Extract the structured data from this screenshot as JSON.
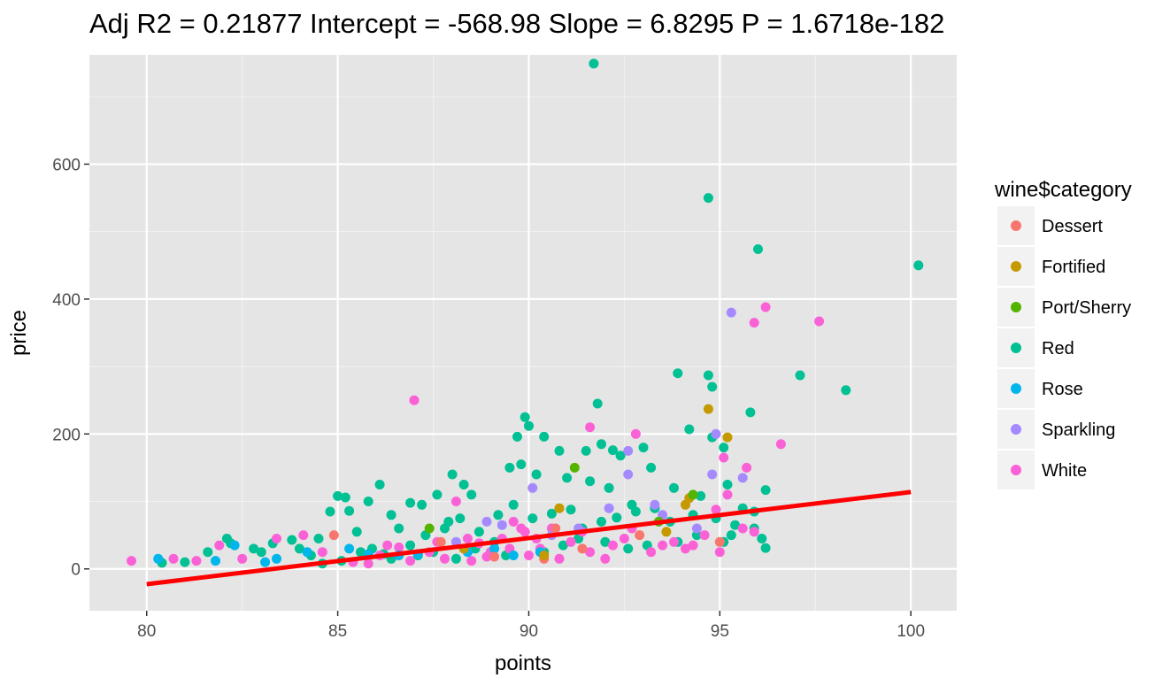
{
  "chart_data": {
    "type": "scatter",
    "title": "Adj R2 =  0.21877 Intercept = -568.98  Slope = 6.8295  P = 1.6718e-182",
    "xlabel": "points",
    "ylabel": "price",
    "xlim": [
      78.5,
      101.2
    ],
    "ylim": [
      -62,
      762
    ],
    "x_ticks": [
      80,
      85,
      90,
      95,
      100
    ],
    "x_tick_labels": [
      "80",
      "85",
      "90",
      "95",
      "100"
    ],
    "y_ticks": [
      0,
      200,
      400,
      600
    ],
    "y_tick_labels": [
      "0",
      "200",
      "400",
      "600"
    ],
    "grid": true,
    "panel_background": "#e5e5e5",
    "legend": {
      "title": "wine$category",
      "placement": "right",
      "entries": [
        {
          "name": "Dessert",
          "color": "#f8766d"
        },
        {
          "name": "Fortified",
          "color": "#c49a00"
        },
        {
          "name": "Port/Sherry",
          "color": "#53b400"
        },
        {
          "name": "Red",
          "color": "#00c094"
        },
        {
          "name": "Rose",
          "color": "#00b6eb"
        },
        {
          "name": "Sparkling",
          "color": "#a58aff"
        },
        {
          "name": "White",
          "color": "#fb61d7"
        }
      ]
    },
    "regression_line": {
      "color": "#ff0000",
      "intercept": -568.98,
      "slope": 6.8295,
      "x_range": [
        80,
        100
      ]
    },
    "series": [
      {
        "name": "Red",
        "color": "#00c094",
        "points": [
          [
            91.7,
            749
          ],
          [
            94.7,
            550
          ],
          [
            96,
            474
          ],
          [
            100.2,
            450
          ],
          [
            97.1,
            287
          ],
          [
            98.3,
            265
          ],
          [
            93.9,
            290
          ],
          [
            94.7,
            287
          ],
          [
            94.8,
            270
          ],
          [
            95.8,
            232
          ],
          [
            91.8,
            245
          ],
          [
            89.9,
            225
          ],
          [
            90,
            212
          ],
          [
            89.7,
            196
          ],
          [
            90.4,
            196
          ],
          [
            94.2,
            207
          ],
          [
            94.8,
            195
          ],
          [
            96.2,
            117
          ],
          [
            95.9,
            60
          ],
          [
            96.2,
            31
          ],
          [
            95.1,
            180
          ],
          [
            95.2,
            125
          ],
          [
            95.6,
            90
          ],
          [
            95.3,
            50
          ],
          [
            91.9,
            185
          ],
          [
            92.2,
            176
          ],
          [
            93,
            180
          ],
          [
            92.4,
            168
          ],
          [
            91.5,
            175
          ],
          [
            90.8,
            175
          ],
          [
            89.8,
            155
          ],
          [
            89.5,
            150
          ],
          [
            90.2,
            140
          ],
          [
            91,
            135
          ],
          [
            91.6,
            130
          ],
          [
            92.1,
            120
          ],
          [
            93.2,
            150
          ],
          [
            93.8,
            120
          ],
          [
            94.5,
            108
          ],
          [
            92.7,
            95
          ],
          [
            85,
            108
          ],
          [
            85.2,
            106
          ],
          [
            84.8,
            85
          ],
          [
            85.3,
            86
          ],
          [
            86.1,
            125
          ],
          [
            85.8,
            100
          ],
          [
            86.4,
            80
          ],
          [
            86.9,
            98
          ],
          [
            87.2,
            95
          ],
          [
            87.6,
            110
          ],
          [
            88,
            140
          ],
          [
            88.3,
            125
          ],
          [
            88.5,
            110
          ],
          [
            87.9,
            70
          ],
          [
            86.6,
            60
          ],
          [
            85.5,
            55
          ],
          [
            84.5,
            45
          ],
          [
            83.8,
            43
          ],
          [
            83.3,
            38
          ],
          [
            82.8,
            30
          ],
          [
            82.2,
            38
          ],
          [
            82.1,
            45
          ],
          [
            81.6,
            25
          ],
          [
            81,
            10
          ],
          [
            80.4,
            9
          ],
          [
            83,
            25
          ],
          [
            84,
            30
          ],
          [
            84.3,
            20
          ],
          [
            85.6,
            25
          ],
          [
            86.2,
            22
          ],
          [
            86.9,
            35
          ],
          [
            87.3,
            50
          ],
          [
            87.8,
            60
          ],
          [
            88.2,
            75
          ],
          [
            88.7,
            55
          ],
          [
            89.2,
            80
          ],
          [
            89.6,
            95
          ],
          [
            90.1,
            75
          ],
          [
            90.6,
            82
          ],
          [
            91.1,
            88
          ],
          [
            91.4,
            60
          ],
          [
            91.9,
            70
          ],
          [
            92.3,
            76
          ],
          [
            92.8,
            85
          ],
          [
            93.3,
            90
          ],
          [
            93.7,
            70
          ],
          [
            94.3,
            80
          ],
          [
            94.9,
            75
          ],
          [
            95.4,
            65
          ],
          [
            95.9,
            85
          ],
          [
            89.1,
            40
          ],
          [
            88.6,
            30
          ],
          [
            89.4,
            20
          ],
          [
            90.4,
            25
          ],
          [
            90.9,
            35
          ],
          [
            91.3,
            45
          ],
          [
            92,
            40
          ],
          [
            92.6,
            30
          ],
          [
            93.1,
            35
          ],
          [
            93.9,
            40
          ],
          [
            94.4,
            50
          ],
          [
            95.1,
            40
          ],
          [
            96.1,
            45
          ],
          [
            87.1,
            20
          ],
          [
            86.4,
            15
          ],
          [
            85.9,
            30
          ],
          [
            85.1,
            12
          ],
          [
            84.6,
            8
          ],
          [
            88.1,
            15
          ],
          [
            87.5,
            25
          ]
        ]
      },
      {
        "name": "White",
        "color": "#fb61d7",
        "points": [
          [
            96.2,
            388
          ],
          [
            95.9,
            365
          ],
          [
            97.6,
            367
          ],
          [
            87,
            250
          ],
          [
            91.6,
            210
          ],
          [
            92.8,
            200
          ],
          [
            96.6,
            185
          ],
          [
            95.1,
            165
          ],
          [
            95.7,
            150
          ],
          [
            95.2,
            110
          ],
          [
            95.6,
            60
          ],
          [
            95.9,
            55
          ],
          [
            95,
            25
          ],
          [
            79.6,
            12
          ],
          [
            80.7,
            15
          ],
          [
            81.3,
            12
          ],
          [
            81.9,
            35
          ],
          [
            82.5,
            15
          ],
          [
            83.4,
            45
          ],
          [
            84.1,
            50
          ],
          [
            84.6,
            25
          ],
          [
            85.4,
            10
          ],
          [
            86.1,
            20
          ],
          [
            86.6,
            32
          ],
          [
            87.4,
            25
          ],
          [
            88.1,
            100
          ],
          [
            88.4,
            45
          ],
          [
            89,
            25
          ],
          [
            89.3,
            45
          ],
          [
            89.6,
            70
          ],
          [
            89.9,
            55
          ],
          [
            90.3,
            30
          ],
          [
            90.6,
            60
          ],
          [
            91.1,
            40
          ],
          [
            91.6,
            25
          ],
          [
            92.2,
            35
          ],
          [
            92.7,
            60
          ],
          [
            93.2,
            25
          ],
          [
            93.5,
            35
          ],
          [
            94.1,
            30
          ],
          [
            94.6,
            50
          ],
          [
            94.9,
            88
          ],
          [
            88.9,
            18
          ],
          [
            88.5,
            12
          ],
          [
            87.8,
            15
          ],
          [
            90,
            20
          ],
          [
            90.8,
            15
          ],
          [
            92,
            15
          ],
          [
            86.9,
            12
          ],
          [
            85.8,
            8
          ],
          [
            88.7,
            38
          ],
          [
            89.5,
            30
          ],
          [
            90.2,
            45
          ],
          [
            91.4,
            55
          ],
          [
            92.5,
            45
          ],
          [
            93.8,
            40
          ],
          [
            94.3,
            35
          ],
          [
            87.6,
            40
          ],
          [
            86.3,
            35
          ],
          [
            89.8,
            60
          ]
        ]
      },
      {
        "name": "Rose",
        "color": "#00b6eb",
        "points": [
          [
            80.3,
            15
          ],
          [
            81.8,
            12
          ],
          [
            82.3,
            35
          ],
          [
            83.1,
            10
          ],
          [
            83.4,
            15
          ],
          [
            85.3,
            30
          ],
          [
            86.6,
            20
          ],
          [
            87.1,
            22
          ],
          [
            88.4,
            25
          ],
          [
            89.1,
            30
          ],
          [
            89.6,
            20
          ],
          [
            90.3,
            25
          ],
          [
            84.2,
            25
          ],
          [
            85.8,
            22
          ]
        ]
      },
      {
        "name": "Sparkling",
        "color": "#a58aff",
        "points": [
          [
            95.3,
            380
          ],
          [
            94.9,
            200
          ],
          [
            92.6,
            140
          ],
          [
            92.6,
            175
          ],
          [
            94.8,
            140
          ],
          [
            95.6,
            135
          ],
          [
            93.3,
            95
          ],
          [
            88.9,
            70
          ],
          [
            91.3,
            60
          ],
          [
            92.1,
            90
          ],
          [
            94.4,
            60
          ],
          [
            88.1,
            40
          ],
          [
            90.6,
            50
          ],
          [
            89.3,
            65
          ],
          [
            90.1,
            120
          ],
          [
            93.5,
            80
          ]
        ]
      },
      {
        "name": "Dessert",
        "color": "#f8766d",
        "points": [
          [
            84.9,
            50
          ],
          [
            90.7,
            60
          ],
          [
            92.9,
            50
          ],
          [
            95,
            40
          ],
          [
            87.7,
            40
          ],
          [
            90.4,
            15
          ],
          [
            89.1,
            18
          ],
          [
            91.4,
            30
          ]
        ]
      },
      {
        "name": "Fortified",
        "color": "#c49a00",
        "points": [
          [
            94.7,
            237
          ],
          [
            95.2,
            195
          ],
          [
            94.2,
            105
          ],
          [
            94.1,
            95
          ],
          [
            88.3,
            30
          ],
          [
            90.4,
            20
          ],
          [
            90.8,
            90
          ],
          [
            93.6,
            55
          ]
        ]
      },
      {
        "name": "Port/Sherry",
        "color": "#53b400",
        "points": [
          [
            91.2,
            150
          ],
          [
            87.4,
            60
          ],
          [
            94.3,
            110
          ],
          [
            93.4,
            70
          ]
        ]
      }
    ]
  }
}
